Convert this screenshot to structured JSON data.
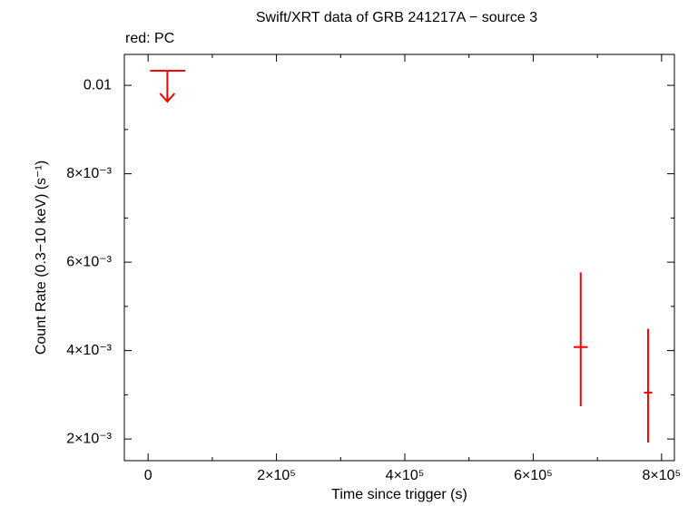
{
  "chart_data": {
    "type": "scatter",
    "title": "Swift/XRT data of GRB 241217A − source 3",
    "annotation": "red: PC",
    "xlabel": "Time since trigger (s)",
    "ylabel": "Count Rate (0.3−10 keV) (s⁻¹)",
    "color": "#ff0000",
    "xlim": [
      -37000,
      820000
    ],
    "ylim": [
      0.00151,
      0.0107
    ],
    "xticks": [
      0,
      {
        "value": 200000,
        "label": "2×10⁵"
      },
      {
        "value": 400000,
        "label": "4×10⁵"
      },
      {
        "value": 600000,
        "label": "6×10⁵"
      },
      {
        "value": 800000,
        "label": "8×10⁵"
      }
    ],
    "xticks_minor": [
      100000,
      300000,
      500000,
      700000
    ],
    "yticks": [
      {
        "value": 0.002,
        "label": "2×10⁻³"
      },
      {
        "value": 0.004,
        "label": "4×10⁻³"
      },
      {
        "value": 0.006,
        "label": "6×10⁻³"
      },
      {
        "value": 0.008,
        "label": "8×10⁻³"
      },
      0.01
    ],
    "yticks_minor": [
      0.003,
      0.005,
      0.007,
      0.009
    ],
    "series": [
      {
        "x": [
          674000,
          779000
        ],
        "xerr": [
          11000,
          6500
        ],
        "values": [
          0.00408,
          0.00305
        ],
        "yerr_plus": [
          0.00169,
          0.00144
        ],
        "yerr_minus": [
          0.00134,
          0.00113
        ]
      }
    ],
    "upper_limits": {
      "x": [
        30000
      ],
      "xerr_minus": [
        27000
      ],
      "xerr_plus": [
        28000
      ],
      "values": [
        0.01033
      ]
    }
  }
}
